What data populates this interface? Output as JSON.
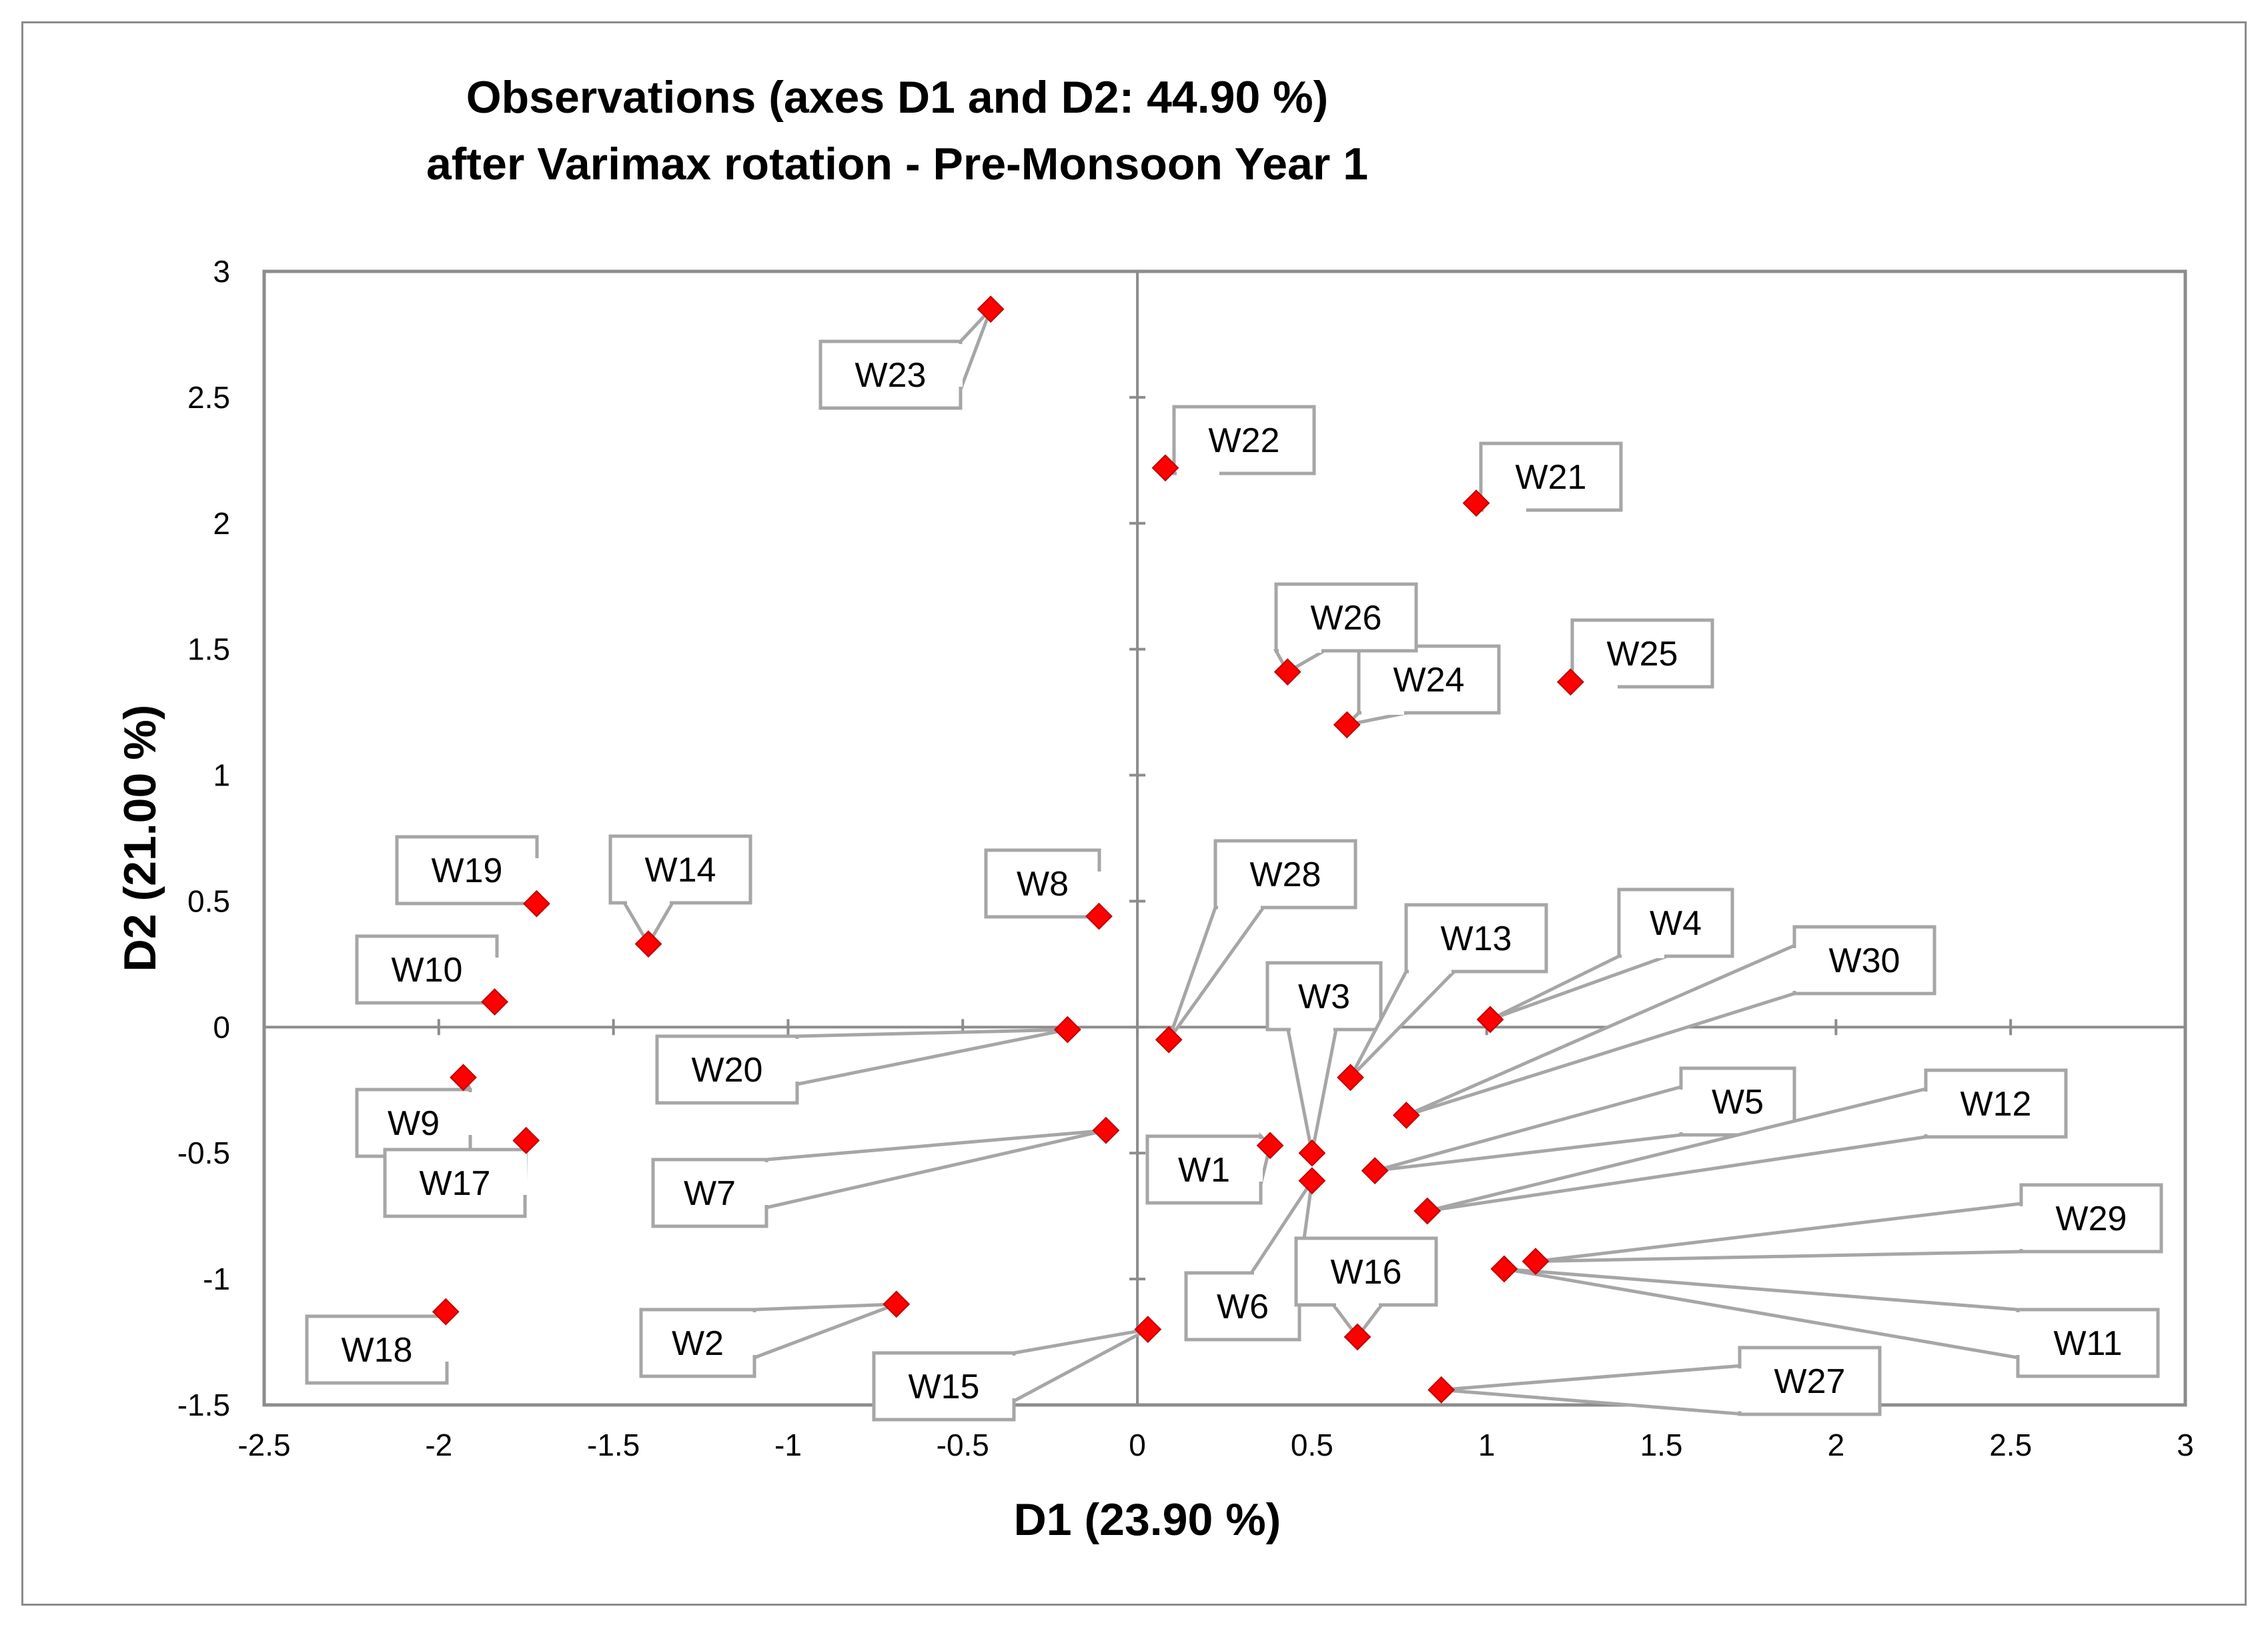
{
  "chart_data": {
    "type": "scatter",
    "title": "Observations (axes D1 and D2: 44.90 %)",
    "subtitle": "after Varimax rotation - Pre-Monsoon Year 1",
    "xlabel": "D1 (23.90 %)",
    "ylabel": "D2 (21.00 %)",
    "xlim": [
      -2.5,
      3
    ],
    "ylim": [
      -1.5,
      3
    ],
    "x_ticks": [
      "-2.5",
      "-2",
      "-1.5",
      "-1",
      "-0.5",
      "0",
      "0.5",
      "1",
      "1.5",
      "2",
      "2.5",
      "3"
    ],
    "y_ticks": [
      "-1.5",
      "-1",
      "-0.5",
      "0",
      "0.5",
      "1",
      "1.5",
      "2",
      "2.5",
      "3"
    ],
    "marker_color": "#ff0000",
    "points": [
      {
        "label": "W1",
        "x": 0.38,
        "y": -0.47
      },
      {
        "label": "W2",
        "x": -0.69,
        "y": -1.1
      },
      {
        "label": "W3",
        "x": 0.5,
        "y": -0.5
      },
      {
        "label": "W4",
        "x": 1.01,
        "y": 0.03
      },
      {
        "label": "W5",
        "x": 0.68,
        "y": -0.57
      },
      {
        "label": "W6",
        "x": 0.5,
        "y": -0.61
      },
      {
        "label": "W7",
        "x": -0.09,
        "y": -0.41
      },
      {
        "label": "W8",
        "x": -0.11,
        "y": 0.44
      },
      {
        "label": "W9",
        "x": -1.93,
        "y": -0.2
      },
      {
        "label": "W10",
        "x": -1.84,
        "y": 0.1
      },
      {
        "label": "W11",
        "x": 1.05,
        "y": -0.96
      },
      {
        "label": "W12",
        "x": 0.83,
        "y": -0.73
      },
      {
        "label": "W13",
        "x": 0.61,
        "y": -0.2
      },
      {
        "label": "W14",
        "x": -1.4,
        "y": 0.33
      },
      {
        "label": "W15",
        "x": 0.03,
        "y": -1.2
      },
      {
        "label": "W16",
        "x": 0.63,
        "y": -1.23
      },
      {
        "label": "W17",
        "x": -1.75,
        "y": -0.45
      },
      {
        "label": "W18",
        "x": -1.98,
        "y": -1.13
      },
      {
        "label": "W19",
        "x": -1.72,
        "y": 0.49
      },
      {
        "label": "W20",
        "x": -0.2,
        "y": -0.01
      },
      {
        "label": "W21",
        "x": 0.97,
        "y": 2.08
      },
      {
        "label": "W22",
        "x": 0.08,
        "y": 2.22
      },
      {
        "label": "W23",
        "x": -0.42,
        "y": 2.85
      },
      {
        "label": "W24",
        "x": 0.6,
        "y": 1.2
      },
      {
        "label": "W25",
        "x": 1.24,
        "y": 1.37
      },
      {
        "label": "W26",
        "x": 0.43,
        "y": 1.41
      },
      {
        "label": "W27",
        "x": 0.87,
        "y": -1.44
      },
      {
        "label": "W28",
        "x": 0.09,
        "y": -0.05
      },
      {
        "label": "W29",
        "x": 1.14,
        "y": -0.93
      },
      {
        "label": "W30",
        "x": 0.77,
        "y": -0.35
      }
    ]
  }
}
